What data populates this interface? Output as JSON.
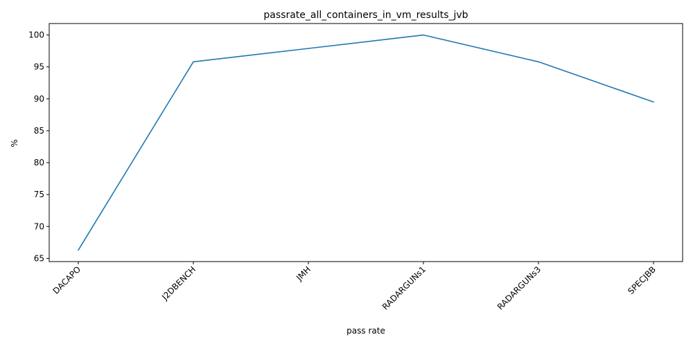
{
  "chart_data": {
    "type": "line",
    "title": "passrate_all_containers_in_vm_results_jvb",
    "xlabel": "pass rate",
    "ylabel": "%",
    "categories": [
      "DACAPO",
      "J2DBENCH",
      "JMH",
      "RADARGUNs1",
      "RADARGUNs3",
      "SPECJBB"
    ],
    "series": [
      {
        "values": [
          66.3,
          95.8,
          97.9,
          100.0,
          95.8,
          89.5
        ]
      }
    ],
    "ylim": [
      64.5,
      101.8
    ],
    "yticks": [
      65,
      70,
      75,
      80,
      85,
      90,
      95,
      100
    ],
    "grid": false,
    "legend": "none",
    "colors": {
      "line": "#1f77b4",
      "axis": "#000000",
      "background": "#ffffff"
    }
  }
}
